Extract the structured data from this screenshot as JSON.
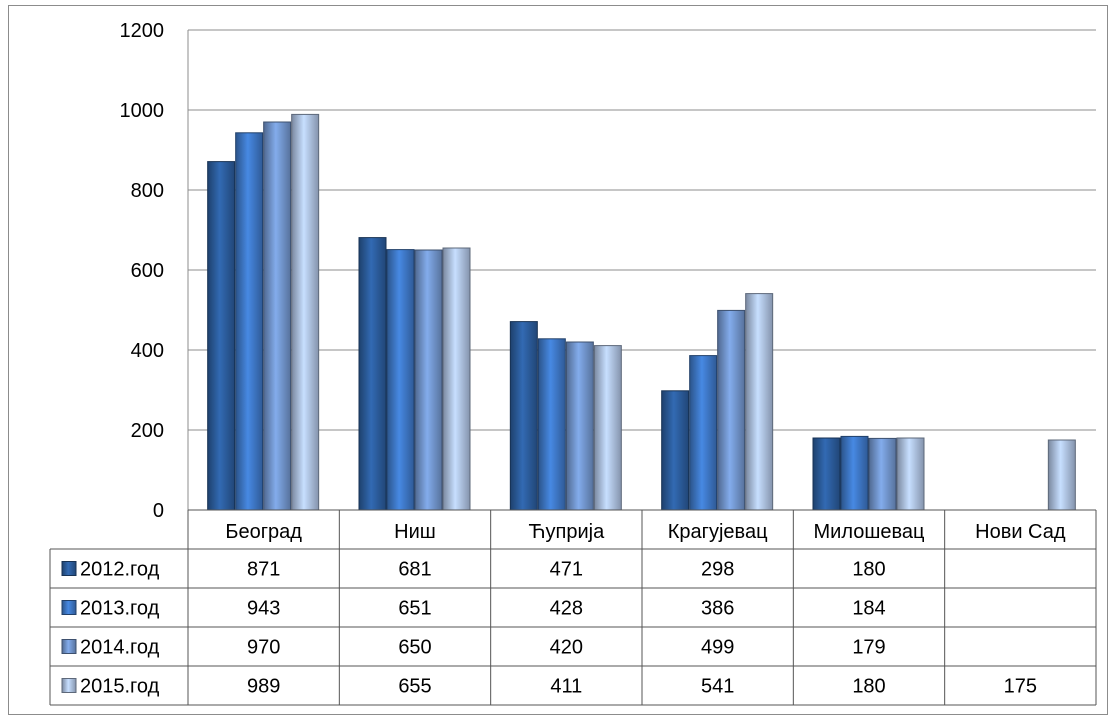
{
  "chart_data": {
    "type": "bar",
    "categories": [
      "Београд",
      "Ниш",
      "Ћуприја",
      "Крагујевац",
      "Милошевац",
      "Нови Сад"
    ],
    "series": [
      {
        "name": "2012.год",
        "values": [
          871,
          681,
          471,
          298,
          180,
          null
        ],
        "color": "#2a5a98"
      },
      {
        "name": "2013.год",
        "values": [
          943,
          651,
          428,
          386,
          184,
          null
        ],
        "color": "#3c74c0"
      },
      {
        "name": "2014.год",
        "values": [
          970,
          650,
          420,
          499,
          179,
          null
        ],
        "color": "#6f92c8"
      },
      {
        "name": "2015.год",
        "values": [
          989,
          655,
          411,
          541,
          180,
          175
        ],
        "color": "#a9bddd"
      }
    ],
    "ylim": [
      0,
      1200
    ],
    "yticks": [
      "0",
      "200",
      "400",
      "600",
      "800",
      "1000",
      "1200"
    ],
    "grid": true,
    "legend": "data-table",
    "table": {
      "rows": [
        [
          "871",
          "681",
          "471",
          "298",
          "180",
          ""
        ],
        [
          "943",
          "651",
          "428",
          "386",
          "184",
          ""
        ],
        [
          "970",
          "650",
          "420",
          "499",
          "179",
          ""
        ],
        [
          "989",
          "655",
          "411",
          "541",
          "180",
          "175"
        ]
      ]
    }
  }
}
